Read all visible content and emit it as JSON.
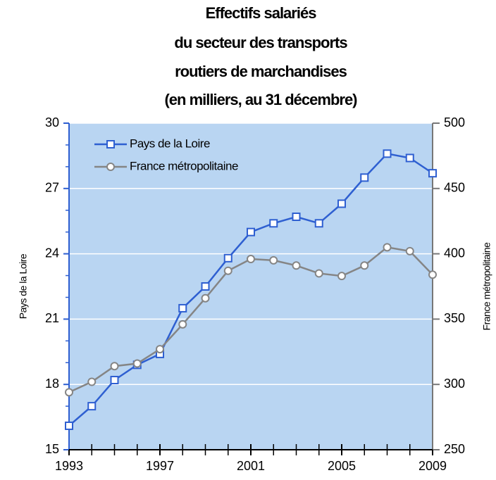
{
  "chart_data": {
    "type": "line",
    "title": [
      "Effectifs salariés",
      "du secteur des transports",
      "routiers de marchandises",
      "(en milliers, au 31 décembre)"
    ],
    "ylabel": "Pays de la Loire",
    "y2label": "France métropolitaine",
    "x": [
      1993,
      1994,
      1995,
      1996,
      1997,
      1998,
      1999,
      2000,
      2001,
      2002,
      2003,
      2004,
      2005,
      2006,
      2007,
      2008,
      2009
    ],
    "xlim": [
      1993,
      2009
    ],
    "xticks": [
      1993,
      1997,
      2001,
      2005,
      2009
    ],
    "ylim": [
      15,
      30
    ],
    "yticks": [
      15,
      18,
      21,
      24,
      27,
      30
    ],
    "y2lim": [
      250,
      500
    ],
    "y2ticks": [
      250,
      300,
      350,
      400,
      450,
      500
    ],
    "grid": true,
    "background": "#b9d5f2",
    "legend": "upper left",
    "series": [
      {
        "name": "Pays de la Loire",
        "color": "#2e5fd1",
        "marker": "square",
        "values": [
          16.1,
          17.0,
          18.2,
          18.9,
          19.4,
          21.5,
          22.5,
          23.8,
          25.0,
          25.4,
          25.7,
          25.4,
          26.3,
          27.5,
          28.6,
          28.4,
          27.7
        ]
      },
      {
        "name": "France métropolitaine",
        "color": "#858585",
        "marker": "circle",
        "axis": "y2",
        "values": [
          294,
          302,
          314,
          316,
          327,
          346,
          366,
          387,
          396,
          395,
          391,
          385,
          383,
          391,
          405,
          402,
          384
        ]
      }
    ]
  }
}
